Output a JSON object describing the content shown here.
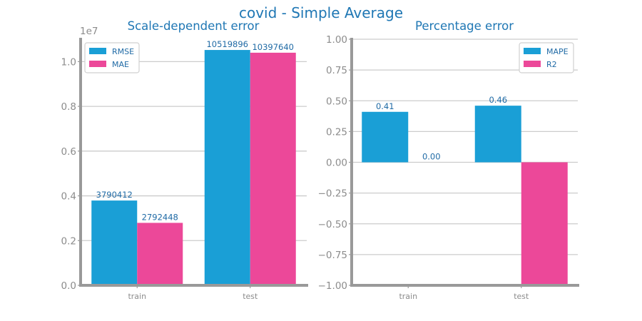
{
  "page": {
    "title": "covid - Simple Average"
  },
  "chart_data": [
    {
      "type": "bar",
      "title": "Scale-dependent error",
      "xlabel": "",
      "ylabel": "",
      "offset_label": "1e7",
      "categories": [
        "train",
        "test"
      ],
      "series": [
        {
          "name": "RMSE",
          "color": "#1a9fd6",
          "values": [
            3790412,
            10519896
          ],
          "labels": [
            "3790412",
            "10519896"
          ]
        },
        {
          "name": "MAE",
          "color": "#ec4899",
          "values": [
            2792448,
            10397640
          ],
          "labels": [
            "2792448",
            "10397640"
          ]
        }
      ],
      "ylim": [
        0,
        11000000
      ],
      "yticks": [
        0,
        2000000,
        4000000,
        6000000,
        8000000,
        10000000
      ],
      "ytick_labels": [
        "0.0",
        "0.2",
        "0.4",
        "0.6",
        "0.8",
        "1.0"
      ],
      "grid": true,
      "legend": "top-left"
    },
    {
      "type": "bar",
      "title": "Percentage error",
      "xlabel": "",
      "ylabel": "",
      "categories": [
        "train",
        "test"
      ],
      "series": [
        {
          "name": "MAPE",
          "color": "#1a9fd6",
          "values": [
            0.41,
            0.46
          ],
          "labels": [
            "0.41",
            "0.46"
          ]
        },
        {
          "name": "R2",
          "color": "#ec4899",
          "values": [
            0.0,
            -1.0
          ],
          "labels": [
            "0.00",
            ""
          ]
        }
      ],
      "ylim": [
        -1.0,
        1.0
      ],
      "yticks": [
        -1.0,
        -0.75,
        -0.5,
        -0.25,
        0.0,
        0.25,
        0.5,
        0.75,
        1.0
      ],
      "ytick_labels": [
        "−1.00",
        "−0.75",
        "−0.50",
        "−0.25",
        "0.00",
        "0.25",
        "0.50",
        "0.75",
        "1.00"
      ],
      "grid": true,
      "legend": "top-right"
    }
  ]
}
